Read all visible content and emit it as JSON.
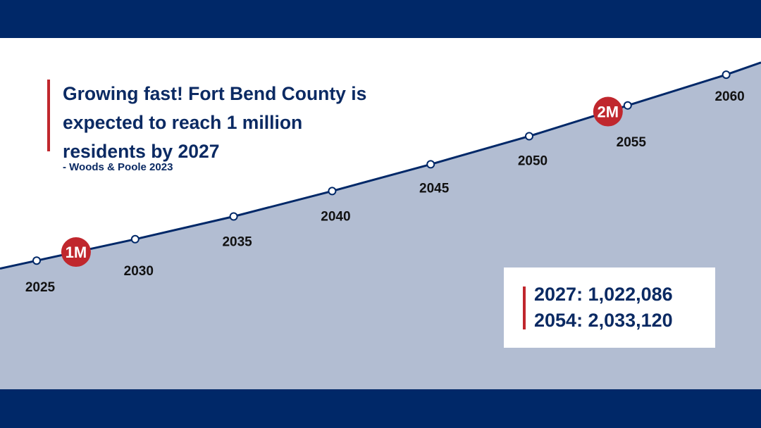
{
  "header": {
    "headline_lines": [
      "Growing fast! Fort Bend County is",
      "expected to reach 1 million",
      "residents by 2027"
    ],
    "source": "- Woods & Poole 2023"
  },
  "stats": {
    "line1": "2027: 1,022,086",
    "line2": "2054: 2,033,120"
  },
  "colors": {
    "navy": "#002868",
    "text_navy": "#0b2a63",
    "red": "#c0272d",
    "area_fill": "#b2bdd2"
  },
  "chart_data": {
    "type": "area",
    "x": [
      2025,
      2030,
      2035,
      2040,
      2045,
      2050,
      2055,
      2060
    ],
    "x_labels": [
      "2025",
      "2030",
      "2035",
      "2040",
      "2045",
      "2050",
      "2055",
      "2060"
    ],
    "series": [
      {
        "values": [
          920000,
          1080000,
          1250000,
          1440000,
          1640000,
          1850000,
          2080000,
          2310000
        ]
      }
    ],
    "milestones": [
      {
        "label": "1M",
        "x": 2027,
        "value": 1022086
      },
      {
        "label": "2M",
        "x": 2054,
        "value": 2033120
      }
    ],
    "ylim": [
      0,
      2600000
    ],
    "grid": false
  }
}
